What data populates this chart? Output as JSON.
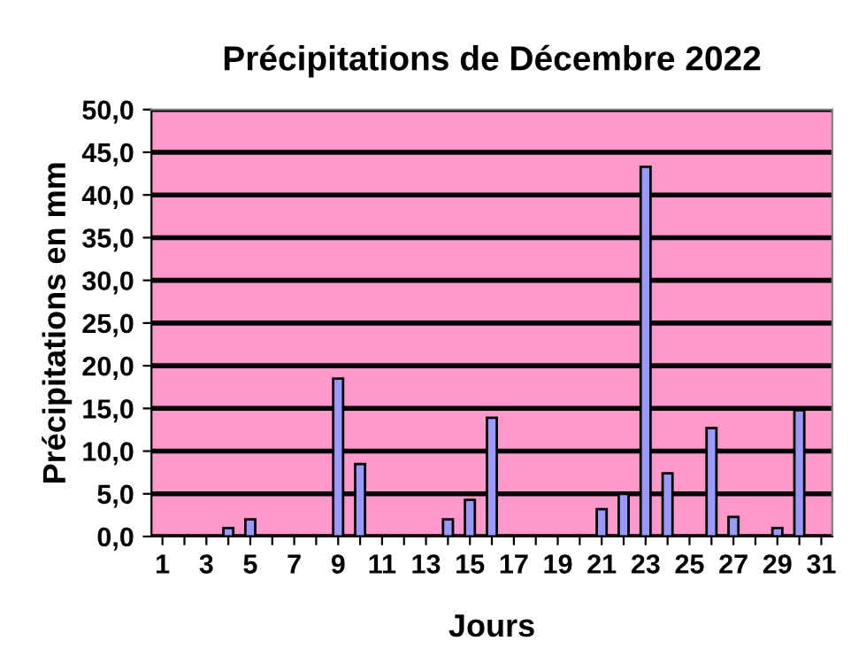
{
  "chart_data": {
    "type": "bar",
    "title": "Précipitations de Décembre 2022",
    "xlabel": "Jours",
    "ylabel": "Précipitations en mm",
    "categories": [
      "1",
      null,
      "3",
      null,
      "5",
      null,
      "7",
      null,
      "9",
      null,
      "11",
      null,
      "13",
      null,
      "15",
      null,
      "17",
      null,
      "19",
      null,
      "21",
      null,
      "23",
      null,
      "25",
      null,
      "27",
      null,
      "29",
      null,
      "31"
    ],
    "series": [
      {
        "color": "#9999ff",
        "values": [
          0,
          0,
          0,
          1.0,
          2.0,
          0,
          0,
          0,
          18.5,
          8.5,
          0,
          0,
          0,
          2.0,
          4.3,
          13.9,
          0,
          0,
          0,
          0,
          3.2,
          5.0,
          43.3,
          7.4,
          0,
          12.7,
          2.3,
          0,
          1.0,
          14.8,
          0
        ]
      }
    ],
    "ylim": [
      0,
      50
    ],
    "yticks": [
      {
        "value": 0,
        "label": "0,0"
      },
      {
        "value": 5,
        "label": "5,0"
      },
      {
        "value": 10,
        "label": "10,0"
      },
      {
        "value": 15,
        "label": "15,0"
      },
      {
        "value": 20,
        "label": "20,0"
      },
      {
        "value": 25,
        "label": "25,0"
      },
      {
        "value": 30,
        "label": "30,0"
      },
      {
        "value": 35,
        "label": "35,0"
      },
      {
        "value": 40,
        "label": "40,0"
      },
      {
        "value": 45,
        "label": "45,0"
      },
      {
        "value": 50,
        "label": "50,0"
      }
    ],
    "grid": "y",
    "legend": false
  }
}
